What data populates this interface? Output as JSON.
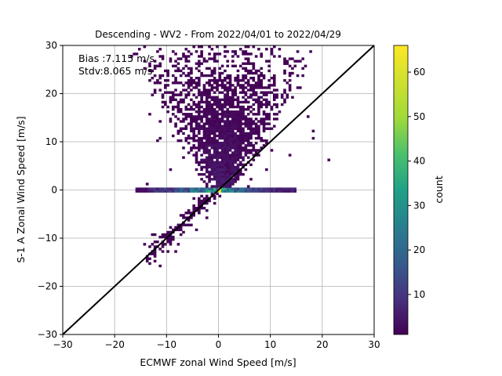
{
  "chart_data": {
    "type": "heatmap",
    "title": "Descending - WV2 - From 2022/04/01 to 2022/04/29",
    "xlabel": "ECMWF zonal Wind Speed [m/s]",
    "ylabel": "S-1 A Zonal Wind Speed [m/s]",
    "xlim": [
      -30,
      30
    ],
    "ylim": [
      -30,
      30
    ],
    "xticks": [
      -30,
      -20,
      -10,
      0,
      10,
      20,
      30
    ],
    "yticks": [
      -30,
      -20,
      -10,
      0,
      10,
      20,
      30
    ],
    "xtick_labels": [
      "−30",
      "−20",
      "−10",
      "0",
      "10",
      "20",
      "30"
    ],
    "ytick_labels": [
      "−30",
      "−20",
      "−10",
      "0",
      "10",
      "20",
      "30"
    ],
    "grid": true,
    "annotations": [
      "Bias :7.115 m/s",
      "Stdv:8.065 m/s"
    ],
    "reference_line": {
      "name": "y = x",
      "points": [
        [
          -30,
          -30
        ],
        [
          30,
          30
        ]
      ],
      "color": "#000000"
    },
    "colorbar": {
      "label": "count",
      "min": 1,
      "max": 66,
      "ticks": [
        10,
        20,
        30,
        40,
        50,
        60
      ],
      "tick_labels": [
        "10",
        "20",
        "30",
        "40",
        "50",
        "60"
      ],
      "colormap": "viridis"
    },
    "density_regions": [
      {
        "region": "main cluster above diagonal",
        "x_range": [
          -12,
          14
        ],
        "y_range": [
          -1,
          30
        ],
        "typical_count": "1-10",
        "peak_count": 15
      },
      {
        "region": "lower branch along diagonal",
        "x_range": [
          -14,
          1
        ],
        "y_range": [
          -16,
          0
        ],
        "typical_count": "1-5"
      },
      {
        "region": "zero line (S-1 = 0)",
        "x_range": [
          -16,
          15
        ],
        "y": 0,
        "typical_count": "5-35",
        "peak_count": 66
      }
    ]
  }
}
